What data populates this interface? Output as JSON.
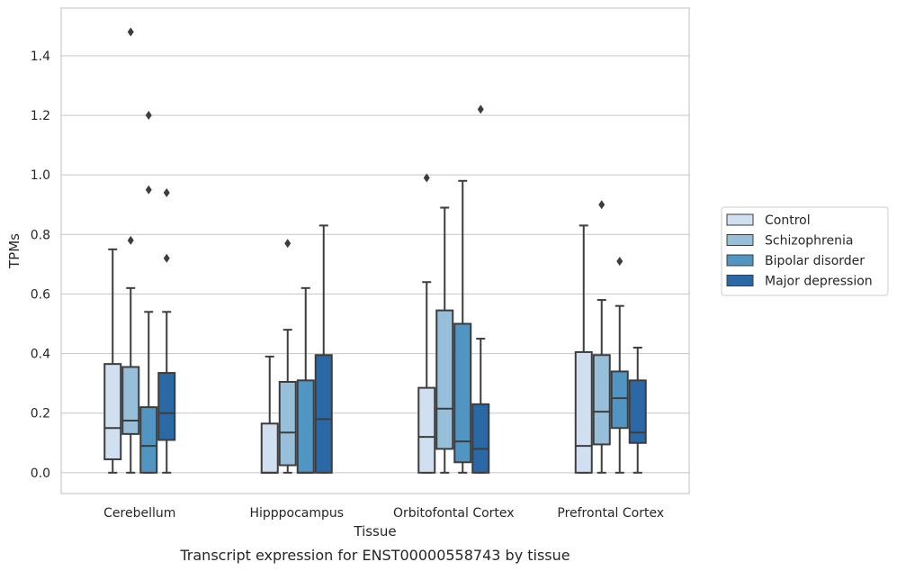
{
  "chart_data": {
    "type": "box",
    "title": "Transcript expression for ENST00000558743 by tissue",
    "xlabel": "Tissue",
    "ylabel": "TPMs",
    "ylim": [
      -0.07,
      1.56
    ],
    "yticks": [
      0.0,
      0.2,
      0.4,
      0.6,
      0.8,
      1.0,
      1.2,
      1.4
    ],
    "ytick_labels": [
      "0.0",
      "0.2",
      "0.4",
      "0.6",
      "0.8",
      "1.0",
      "1.2",
      "1.4"
    ],
    "categories": [
      "Cerebellum",
      "Hipppocampus",
      "Orbitofontal Cortex",
      "Prefrontal Cortex"
    ],
    "grid": "horizontal",
    "legend_position": "right",
    "series": [
      {
        "name": "Control",
        "color": "#d1e0f0",
        "boxes": [
          {
            "whislo": 0.0,
            "q1": 0.045,
            "med": 0.15,
            "q3": 0.365,
            "whishi": 0.75,
            "fliers": []
          },
          {
            "whislo": 0.0,
            "q1": 0.0,
            "med": 0.0,
            "q3": 0.165,
            "whishi": 0.39,
            "fliers": []
          },
          {
            "whislo": 0.0,
            "q1": 0.0,
            "med": 0.12,
            "q3": 0.285,
            "whishi": 0.64,
            "fliers": [
              0.99
            ]
          },
          {
            "whislo": 0.0,
            "q1": 0.0,
            "med": 0.09,
            "q3": 0.405,
            "whishi": 0.83,
            "fliers": []
          }
        ]
      },
      {
        "name": "Schizophrenia",
        "color": "#97bfd9",
        "boxes": [
          {
            "whislo": 0.0,
            "q1": 0.13,
            "med": 0.175,
            "q3": 0.355,
            "whishi": 0.62,
            "fliers": [
              0.78,
              1.48
            ]
          },
          {
            "whislo": 0.0,
            "q1": 0.025,
            "med": 0.135,
            "q3": 0.305,
            "whishi": 0.48,
            "fliers": [
              0.77
            ]
          },
          {
            "whislo": 0.0,
            "q1": 0.08,
            "med": 0.215,
            "q3": 0.545,
            "whishi": 0.89,
            "fliers": []
          },
          {
            "whislo": 0.0,
            "q1": 0.095,
            "med": 0.205,
            "q3": 0.395,
            "whishi": 0.58,
            "fliers": [
              0.9
            ]
          }
        ]
      },
      {
        "name": "Bipolar disorder",
        "color": "#5195c3",
        "boxes": [
          {
            "whislo": 0.0,
            "q1": 0.0,
            "med": 0.09,
            "q3": 0.22,
            "whishi": 0.54,
            "fliers": [
              0.95,
              1.2
            ]
          },
          {
            "whislo": 0.0,
            "q1": 0.0,
            "med": 0.0,
            "q3": 0.31,
            "whishi": 0.62,
            "fliers": []
          },
          {
            "whislo": 0.0,
            "q1": 0.035,
            "med": 0.105,
            "q3": 0.5,
            "whishi": 0.98,
            "fliers": []
          },
          {
            "whislo": 0.0,
            "q1": 0.15,
            "med": 0.25,
            "q3": 0.34,
            "whishi": 0.56,
            "fliers": [
              0.71
            ]
          }
        ]
      },
      {
        "name": "Major depression",
        "color": "#2a68a6",
        "boxes": [
          {
            "whislo": 0.0,
            "q1": 0.11,
            "med": 0.2,
            "q3": 0.335,
            "whishi": 0.54,
            "fliers": [
              0.72,
              0.94
            ]
          },
          {
            "whislo": 0.0,
            "q1": 0.0,
            "med": 0.18,
            "q3": 0.395,
            "whishi": 0.83,
            "fliers": []
          },
          {
            "whislo": 0.0,
            "q1": 0.0,
            "med": 0.08,
            "q3": 0.23,
            "whishi": 0.45,
            "fliers": [
              1.22
            ]
          },
          {
            "whislo": 0.0,
            "q1": 0.1,
            "med": 0.135,
            "q3": 0.31,
            "whishi": 0.42,
            "fliers": []
          }
        ]
      }
    ]
  }
}
